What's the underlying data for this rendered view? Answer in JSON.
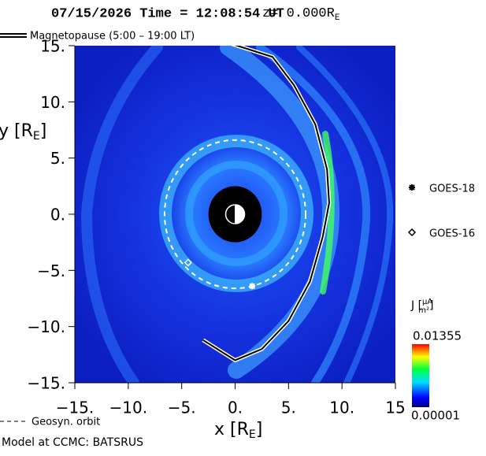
{
  "chart_data": {
    "type": "field-map",
    "title": "07/15/2026 Time = 12:08:54 UT",
    "z_label": [
      "z= 0.000R",
      "E"
    ],
    "xlabel": [
      "x [R",
      "E",
      "]"
    ],
    "ylabel": [
      "y [R",
      "E",
      "]"
    ],
    "xlim": [
      -15,
      15
    ],
    "ylim": [
      -15,
      15
    ],
    "xticks": [
      {
        "value": -15,
        "label": "−15."
      },
      {
        "value": -10,
        "label": "−10."
      },
      {
        "value": -5,
        "label": "−5."
      },
      {
        "value": 0,
        "label": "0."
      },
      {
        "value": 5,
        "label": "5."
      },
      {
        "value": 10,
        "label": "10."
      },
      {
        "value": 15,
        "label": "15"
      }
    ],
    "yticks": [
      {
        "value": 15,
        "label": "15."
      },
      {
        "value": 10,
        "label": "10."
      },
      {
        "value": 5,
        "label": "5."
      },
      {
        "value": 0,
        "label": "0."
      },
      {
        "value": -5,
        "label": "−5."
      },
      {
        "value": -10,
        "label": "−10."
      },
      {
        "value": -15,
        "label": "−15."
      }
    ],
    "inner_boundary_radius": 2.5,
    "series": [
      {
        "name": "Magnetopause (5:00 – 19:00 LT)",
        "color": "#000000",
        "x": [
          -3,
          0,
          2.5,
          5,
          7,
          8.2,
          8.8,
          8.6,
          7.5,
          5.5,
          3.5,
          -0.8
        ],
        "y": [
          -11.2,
          -13,
          -12,
          -9.5,
          -6,
          -2,
          1,
          4,
          8,
          11.5,
          14,
          15.3
        ]
      }
    ],
    "orbit": {
      "name": "Geosyn. orbit",
      "radius": 6.6,
      "color": "#ffffff"
    },
    "satellites": [
      {
        "name": "GOES-18",
        "marker": "star",
        "x": 1.6,
        "y": -6.4
      },
      {
        "name": "GOES-16",
        "marker": "diamond",
        "x": -4.4,
        "y": -4.3
      }
    ],
    "colorbar": {
      "label": [
        "J [",
        "μA",
        "m²",
        "]"
      ],
      "range": [
        {
          "value": 1e-05,
          "label": "0.00001"
        },
        0.01355
      ]
    },
    "footer": "Model at CCMC: BATSRUS"
  }
}
